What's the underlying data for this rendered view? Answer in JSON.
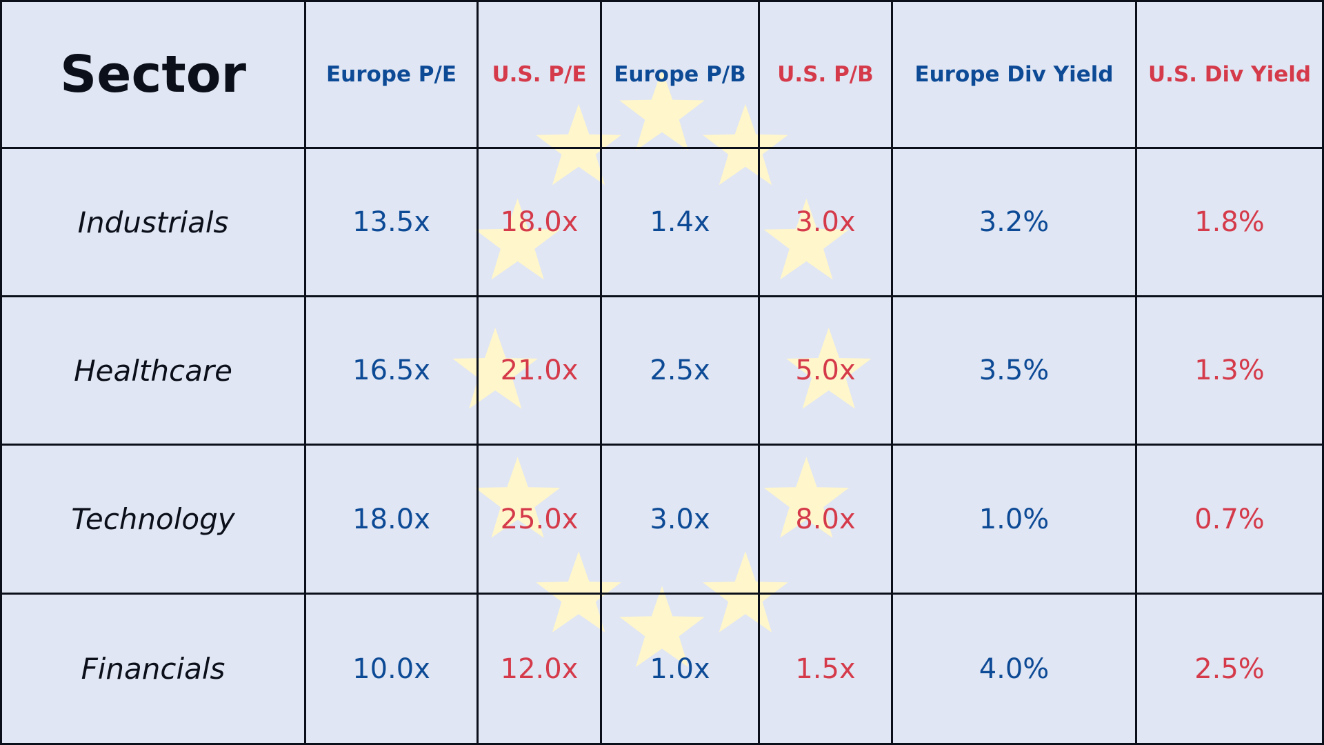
{
  "chart_data": {
    "type": "table",
    "columns": [
      "Sector",
      "Europe P/E",
      "U.S. P/E",
      "Europe P/B",
      "U.S. P/B",
      "Europe Div Yield",
      "U.S. Div Yield"
    ],
    "rows": [
      [
        "Industrials",
        "13.5x",
        "18.0x",
        "1.4x",
        "3.0x",
        "3.2%",
        "1.8%"
      ],
      [
        "Healthcare",
        "16.5x",
        "21.0x",
        "2.5x",
        "5.0x",
        "3.5%",
        "1.3%"
      ],
      [
        "Technology",
        "18.0x",
        "25.0x",
        "3.0x",
        "8.0x",
        "1.0%",
        "0.7%"
      ],
      [
        "Financials",
        "10.0x",
        "12.0x",
        "1.0x",
        "1.5x",
        "4.0%",
        "2.5%"
      ]
    ]
  },
  "colors": {
    "background": "#e0e6f3",
    "europe": "#0d4a96",
    "us": "#d53a4a",
    "text": "#0b0f1a",
    "star": "#fff6cc",
    "border": "#0b0f1a"
  },
  "decoration": {
    "background_icon": "star-icon",
    "star_count": 12
  }
}
